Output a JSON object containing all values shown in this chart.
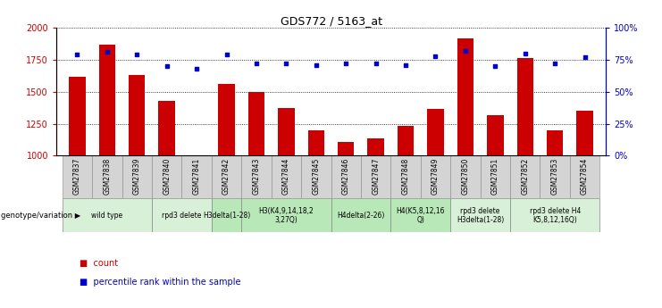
{
  "title": "GDS772 / 5163_at",
  "samples": [
    "GSM27837",
    "GSM27838",
    "GSM27839",
    "GSM27840",
    "GSM27841",
    "GSM27842",
    "GSM27843",
    "GSM27844",
    "GSM27845",
    "GSM27846",
    "GSM27847",
    "GSM27848",
    "GSM27849",
    "GSM27850",
    "GSM27851",
    "GSM27852",
    "GSM27853",
    "GSM27854"
  ],
  "counts": [
    1620,
    1870,
    1630,
    1430,
    1000,
    1560,
    1500,
    1370,
    1195,
    1105,
    1135,
    1230,
    1365,
    1920,
    1320,
    1760,
    1200,
    1355
  ],
  "percentiles": [
    79,
    81,
    79,
    70,
    68,
    79,
    72,
    72,
    71,
    72,
    72,
    71,
    78,
    82,
    70,
    80,
    72,
    77
  ],
  "bar_color": "#cc0000",
  "dot_color": "#0000cc",
  "ylim_left": [
    1000,
    2000
  ],
  "ylim_right": [
    0,
    100
  ],
  "yticks_left": [
    1000,
    1250,
    1500,
    1750,
    2000
  ],
  "yticks_right": [
    0,
    25,
    50,
    75,
    100
  ],
  "groups": [
    {
      "label": "wild type",
      "start": 0,
      "end": 2,
      "color": "#d8f0d8"
    },
    {
      "label": "rpd3 delete",
      "start": 3,
      "end": 4,
      "color": "#d8f0d8"
    },
    {
      "label": "H3delta(1-28)",
      "start": 5,
      "end": 5,
      "color": "#b8e8b8"
    },
    {
      "label": "H3(K4,9,14,18,2\n3,27Q)",
      "start": 6,
      "end": 8,
      "color": "#b8e8b8"
    },
    {
      "label": "H4delta(2-26)",
      "start": 9,
      "end": 10,
      "color": "#b8e8b8"
    },
    {
      "label": "H4(K5,8,12,16\nQ)",
      "start": 11,
      "end": 12,
      "color": "#b8e8b8"
    },
    {
      "label": "rpd3 delete\nH3delta(1-28)",
      "start": 13,
      "end": 14,
      "color": "#d8f0d8"
    },
    {
      "label": "rpd3 delete H4\nK5,8,12,16Q)",
      "start": 15,
      "end": 17,
      "color": "#d8f0d8"
    }
  ],
  "xlabel_genotype": "genotype/variation",
  "legend_count": "count",
  "legend_percentile": "percentile rank within the sample",
  "bg_color": "#ffffff",
  "sample_label_bg": "#d4d4d4",
  "chart_bg": "#ffffff"
}
